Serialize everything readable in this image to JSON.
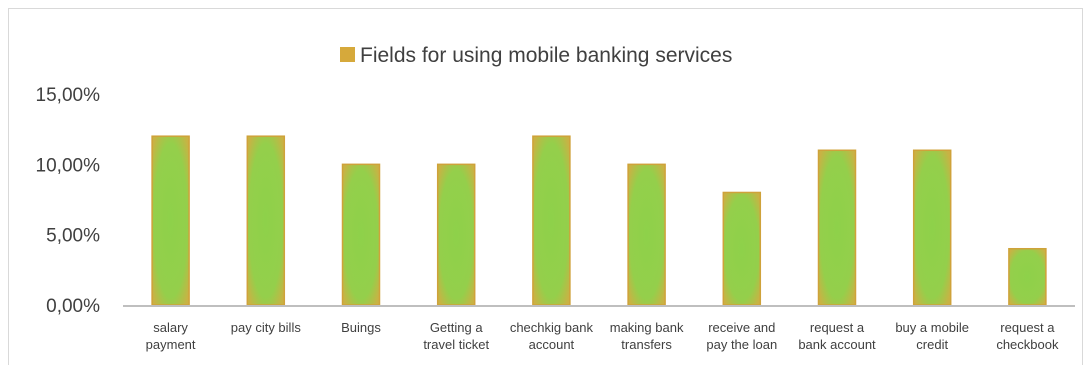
{
  "colors": {
    "legend_swatch": "#D6A93B",
    "bar_edge": "#CFA23A",
    "bar_fill": "#8ED14A",
    "axis": "#BFBFBF",
    "text": "#404040"
  },
  "chart_data": {
    "type": "bar",
    "title": "",
    "xlabel": "",
    "ylabel": "",
    "legend": {
      "placement": "top",
      "entries": [
        "Fields for using mobile banking services"
      ]
    },
    "grid": false,
    "ylim": [
      0,
      0.15
    ],
    "yticks": [
      0,
      0.05,
      0.1,
      0.15
    ],
    "ytick_labels": [
      "0,00%",
      "5,00%",
      "10,00%",
      "15,00%"
    ],
    "categories": [
      [
        "salary",
        "payment"
      ],
      [
        "pay city bills"
      ],
      [
        "Buings"
      ],
      [
        "Getting a",
        "travel ticket"
      ],
      [
        "chechkig bank",
        "account"
      ],
      [
        "making bank",
        "transfers"
      ],
      [
        "receive and",
        "pay the loan"
      ],
      [
        "request a",
        "bank account"
      ],
      [
        "buy a mobile",
        "credit"
      ],
      [
        "request a",
        "checkbook"
      ]
    ],
    "series": [
      {
        "name": "Fields for using mobile banking services",
        "values": [
          0.12,
          0.12,
          0.1,
          0.1,
          0.12,
          0.1,
          0.08,
          0.11,
          0.11,
          0.04
        ]
      }
    ]
  }
}
